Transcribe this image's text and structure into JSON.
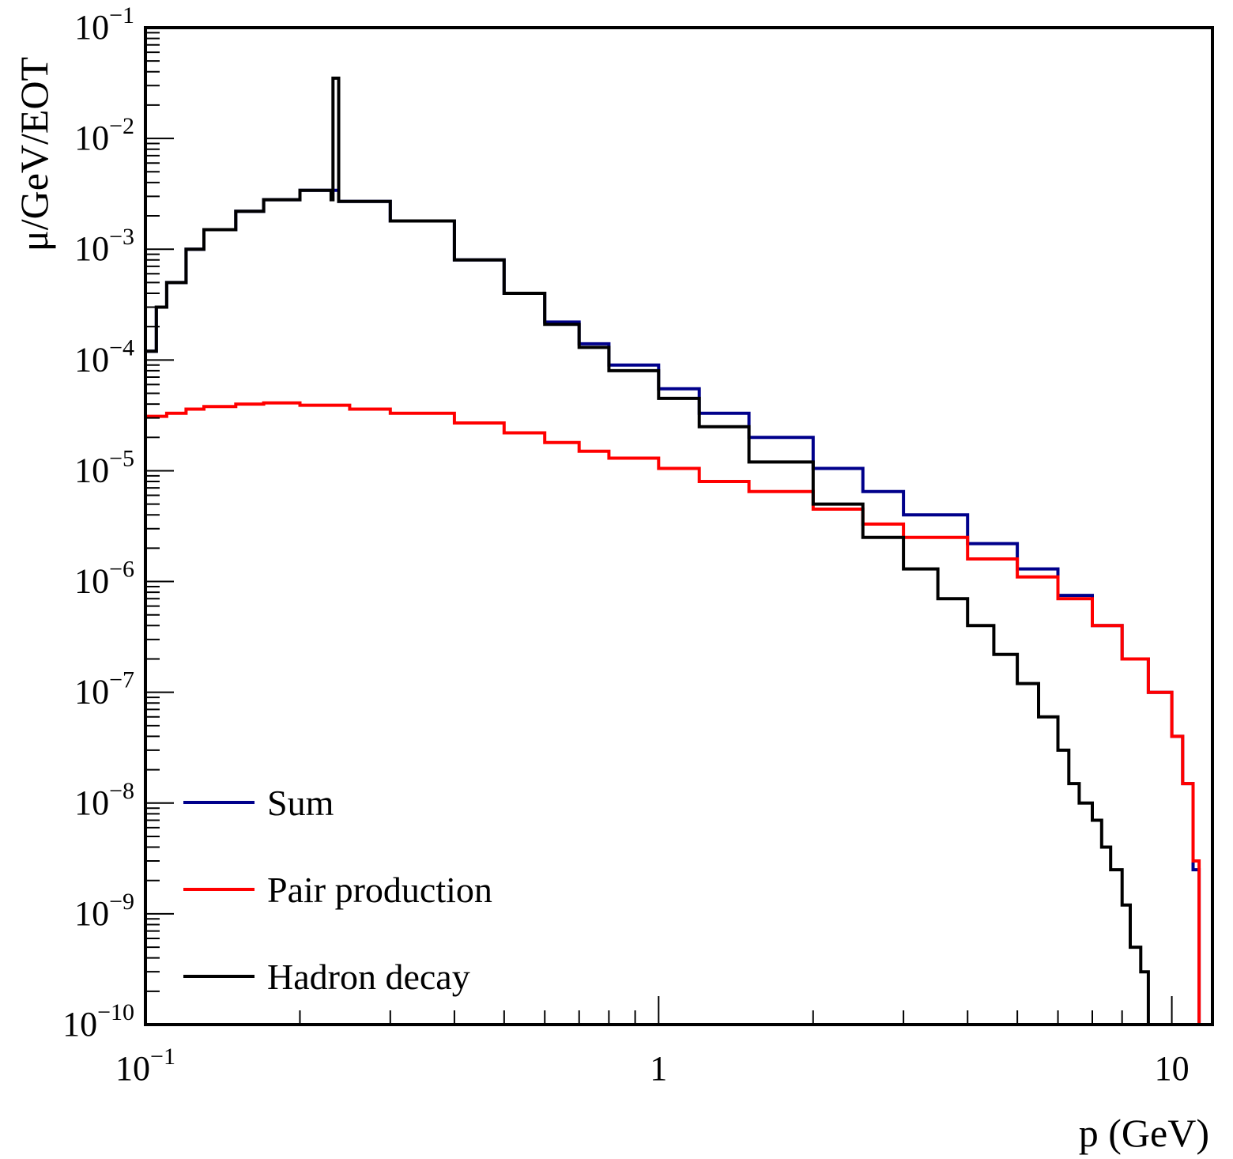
{
  "chart_data": {
    "type": "line",
    "style": "step histogram",
    "xscale": "log",
    "yscale": "log",
    "xlim": [
      0.1,
      12
    ],
    "ylim": [
      1e-10,
      0.1
    ],
    "xlabel": "p (GeV)",
    "ylabel": "μ/GeV/EOT",
    "x_ticks": [
      {
        "value": 0.1,
        "base": "10",
        "exp": "−1"
      },
      {
        "value": 1,
        "base": "1",
        "exp": ""
      },
      {
        "value": 10,
        "base": "10",
        "exp": ""
      }
    ],
    "y_ticks": [
      {
        "value": 1e-10,
        "base": "10",
        "exp": "−10"
      },
      {
        "value": 1e-09,
        "base": "10",
        "exp": "−9"
      },
      {
        "value": 1e-08,
        "base": "10",
        "exp": "−8"
      },
      {
        "value": 1e-07,
        "base": "10",
        "exp": "−7"
      },
      {
        "value": 1e-06,
        "base": "10",
        "exp": "−6"
      },
      {
        "value": 1e-05,
        "base": "10",
        "exp": "−5"
      },
      {
        "value": 0.0001,
        "base": "10",
        "exp": "−4"
      },
      {
        "value": 0.001,
        "base": "10",
        "exp": "−3"
      },
      {
        "value": 0.01,
        "base": "10",
        "exp": "−2"
      },
      {
        "value": 0.1,
        "base": "10",
        "exp": "−1"
      }
    ],
    "legend_position": "bottom-left",
    "series": [
      {
        "name": "Sum",
        "color": "#00008b",
        "x": [
          0.1,
          0.105,
          0.11,
          0.12,
          0.13,
          0.15,
          0.17,
          0.2,
          0.238,
          0.3,
          0.4,
          0.5,
          0.6,
          0.7,
          0.8,
          1.0,
          1.2,
          1.5,
          2.0,
          2.5,
          3.0,
          4.0,
          5.0,
          6.0,
          7.0,
          8.0,
          9.0,
          10.0,
          10.5,
          11.0,
          11.3
        ],
        "y": [
          0.00012,
          0.0003,
          0.0005,
          0.001,
          0.0015,
          0.0022,
          0.0028,
          0.0034,
          0.0027,
          0.0018,
          0.0008,
          0.0004,
          0.00022,
          0.00014,
          9e-05,
          5.5e-05,
          3.3e-05,
          2e-05,
          1.05e-05,
          6.5e-06,
          4e-06,
          2.2e-06,
          1.3e-06,
          7.5e-07,
          4e-07,
          2e-07,
          1e-07,
          4e-08,
          1.5e-08,
          2.5e-09,
          1e-10
        ]
      },
      {
        "name": "Pair production",
        "color": "#ff0000",
        "x": [
          0.1,
          0.11,
          0.12,
          0.13,
          0.15,
          0.17,
          0.2,
          0.25,
          0.3,
          0.4,
          0.5,
          0.6,
          0.7,
          0.8,
          1.0,
          1.2,
          1.5,
          2.0,
          2.5,
          3.0,
          4.0,
          5.0,
          6.0,
          7.0,
          8.0,
          9.0,
          10.0,
          10.5,
          11.0,
          11.3
        ],
        "y": [
          3.1e-05,
          3.3e-05,
          3.6e-05,
          3.8e-05,
          4e-05,
          4.1e-05,
          3.9e-05,
          3.6e-05,
          3.3e-05,
          2.7e-05,
          2.2e-05,
          1.8e-05,
          1.5e-05,
          1.3e-05,
          1.05e-05,
          8e-06,
          6.5e-06,
          4.5e-06,
          3.3e-06,
          2.5e-06,
          1.6e-06,
          1.1e-06,
          7e-07,
          4e-07,
          2e-07,
          1e-07,
          4e-08,
          1.5e-08,
          3e-09,
          1e-10
        ]
      },
      {
        "name": "Hadron decay",
        "color": "#000000",
        "x": [
          0.1,
          0.105,
          0.11,
          0.12,
          0.13,
          0.15,
          0.17,
          0.2,
          0.23,
          0.232,
          0.238,
          0.3,
          0.4,
          0.5,
          0.6,
          0.7,
          0.8,
          1.0,
          1.2,
          1.5,
          2.0,
          2.5,
          3.0,
          3.5,
          4.0,
          4.5,
          5.0,
          5.5,
          6.0,
          6.3,
          6.6,
          7.0,
          7.3,
          7.6,
          8.0,
          8.3,
          8.7,
          9.0
        ],
        "y": [
          0.00012,
          0.0003,
          0.0005,
          0.001,
          0.0015,
          0.0022,
          0.0028,
          0.0034,
          0.0028,
          0.035,
          0.0027,
          0.0018,
          0.0008,
          0.0004,
          0.00021,
          0.00013,
          8e-05,
          4.5e-05,
          2.5e-05,
          1.2e-05,
          5e-06,
          2.5e-06,
          1.3e-06,
          7e-07,
          4e-07,
          2.2e-07,
          1.2e-07,
          6e-08,
          3e-08,
          1.5e-08,
          1e-08,
          7e-09,
          4e-09,
          2.5e-09,
          1.2e-09,
          5e-10,
          3e-10,
          1e-10
        ]
      }
    ]
  }
}
